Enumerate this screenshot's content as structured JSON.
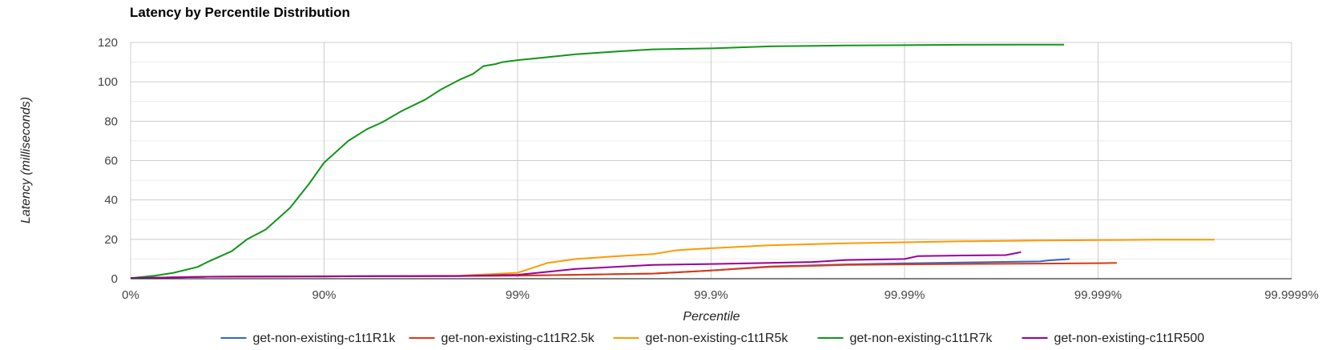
{
  "chart_data": {
    "type": "line",
    "title": "Latency by Percentile Distribution",
    "xlabel": "Percentile",
    "ylabel": "Latency (milliseconds)",
    "x_tick_labels": [
      "0%",
      "90%",
      "99%",
      "99.9%",
      "99.99%",
      "99.999%",
      "99.9999%"
    ],
    "x_scale": "log10 of 1/(1-percentile), nines",
    "x_range": [
      "0%",
      "99.9999%"
    ],
    "y_ticks": [
      0,
      20,
      40,
      60,
      80,
      100,
      120
    ],
    "ylim": [
      0,
      120
    ],
    "grid": true,
    "legend_position": "bottom",
    "series": [
      {
        "name": "get-non-existing-c1t1R1k",
        "color": "#3366cc",
        "percentiles": [
          0,
          60,
          80,
          90,
          95,
          98,
          99,
          99.5,
          99.8,
          99.9,
          99.95,
          99.98,
          99.99,
          99.995,
          99.998,
          99.9982,
          99.9986
        ],
        "latency_ms": [
          0.3,
          1.0,
          1.1,
          1.2,
          1.3,
          1.4,
          1.6,
          2.0,
          2.6,
          4.2,
          6.2,
          7.3,
          7.8,
          8.2,
          8.8,
          9.3,
          10.0
        ]
      },
      {
        "name": "get-non-existing-c1t1R2.5k",
        "color": "#dc3912",
        "percentiles": [
          0,
          60,
          80,
          90,
          95,
          98,
          99,
          99.5,
          99.8,
          99.9,
          99.95,
          99.98,
          99.99,
          99.995,
          99.998,
          99.999,
          99.9992
        ],
        "latency_ms": [
          0.3,
          1.0,
          1.1,
          1.2,
          1.3,
          1.4,
          1.6,
          2.0,
          2.6,
          4.2,
          6.0,
          7.0,
          7.3,
          7.5,
          7.7,
          7.9,
          8.0
        ]
      },
      {
        "name": "get-non-existing-c1t1R5k",
        "color": "#ff9900",
        "percentiles": [
          0,
          60,
          80,
          90,
          95,
          98,
          99,
          99.3,
          99.5,
          99.7,
          99.8,
          99.85,
          99.9,
          99.95,
          99.98,
          99.99,
          99.995,
          99.998,
          99.999,
          99.9995,
          99.99975
        ],
        "latency_ms": [
          0.3,
          1.0,
          1.1,
          1.3,
          1.4,
          1.6,
          3.0,
          8.0,
          10.0,
          11.5,
          12.5,
          14.5,
          15.5,
          17.0,
          18.0,
          18.5,
          19.0,
          19.4,
          19.6,
          19.8,
          19.8
        ]
      },
      {
        "name": "get-non-existing-c1t1R7k",
        "color": "#109618",
        "percentiles": [
          0,
          25,
          40,
          55,
          60,
          70,
          75,
          80,
          85,
          88,
          90,
          91,
          92.5,
          94,
          95,
          96,
          97,
          97.5,
          98,
          98.3,
          98.5,
          98.7,
          98.8,
          99,
          99.3,
          99.5,
          99.7,
          99.8,
          99.9,
          99.95,
          99.98,
          99.99,
          99.995,
          99.998,
          99.9985
        ],
        "latency_ms": [
          0.3,
          1.5,
          3.0,
          6.0,
          8.5,
          14.0,
          20.0,
          25.0,
          36.0,
          48.0,
          59.0,
          63.0,
          70.0,
          76.0,
          79.5,
          85.0,
          91.0,
          96.0,
          101.0,
          104.0,
          108.0,
          109.0,
          110.0,
          111.0,
          112.5,
          114.0,
          115.5,
          116.5,
          117.0,
          118.0,
          118.5,
          118.6,
          118.8,
          118.9,
          118.9
        ]
      },
      {
        "name": "get-non-existing-c1t1R500",
        "color": "#990099",
        "percentiles": [
          0,
          60,
          80,
          90,
          95,
          98,
          99,
          99.3,
          99.5,
          99.8,
          99.9,
          99.95,
          99.97,
          99.98,
          99.99,
          99.9915,
          99.995,
          99.997,
          99.9975
        ],
        "latency_ms": [
          0.3,
          1.0,
          1.1,
          1.2,
          1.3,
          1.4,
          2.0,
          3.5,
          5.0,
          7.0,
          7.5,
          8.0,
          8.5,
          9.5,
          10.0,
          11.5,
          11.8,
          12.0,
          13.5
        ]
      }
    ]
  }
}
